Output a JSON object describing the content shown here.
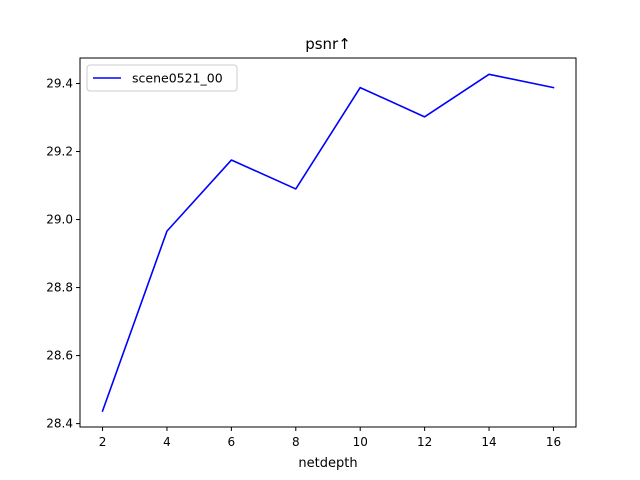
{
  "chart_data": {
    "type": "line",
    "title": "psnr↑",
    "xlabel": "netdepth",
    "ylabel": "",
    "x": [
      2,
      4,
      6,
      8,
      10,
      12,
      14,
      16
    ],
    "series": [
      {
        "name": "scene0521_00",
        "color": "#0000ff",
        "values": [
          28.437,
          28.966,
          29.175,
          29.09,
          29.388,
          29.302,
          29.427,
          29.388
        ]
      }
    ],
    "xlim": [
      1.3,
      16.7
    ],
    "ylim": [
      28.39,
      29.475
    ],
    "xticks": [
      2,
      4,
      6,
      8,
      10,
      12,
      14,
      16
    ],
    "yticks": [
      28.4,
      28.6,
      28.8,
      29.0,
      29.2,
      29.4
    ],
    "xtick_labels": [
      "2",
      "4",
      "6",
      "8",
      "10",
      "12",
      "14",
      "16"
    ],
    "ytick_labels": [
      "28.4",
      "28.6",
      "28.8",
      "29.0",
      "29.2",
      "29.4"
    ],
    "grid": false,
    "legend_position": "top-left"
  }
}
